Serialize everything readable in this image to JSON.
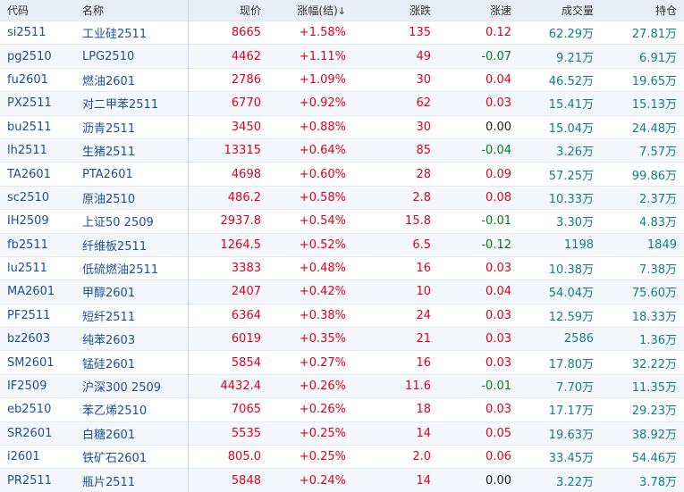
{
  "headers": {
    "code": "代码",
    "name": "名称",
    "price": "现价",
    "change_pct": "涨幅(结)",
    "sort_arrow": "↓",
    "change": "涨跌",
    "speed": "涨速",
    "volume": "成交量",
    "open_interest": "持仓"
  },
  "colors": {
    "up": "#e0001b",
    "down": "#00801a",
    "flat": "#222222",
    "code": "#1a4fa0",
    "volume": "#107c8c",
    "header_bg": "#e8eef7"
  },
  "rows": [
    {
      "code": "si2511",
      "name": "工业硅2511",
      "price": "8665",
      "change_pct": "+1.58%",
      "change": "135",
      "speed": "0.12",
      "speed_dir": "up",
      "volume": "62.29万",
      "oi": "27.81万"
    },
    {
      "code": "pg2510",
      "name": "LPG2510",
      "price": "4462",
      "change_pct": "+1.11%",
      "change": "49",
      "speed": "-0.07",
      "speed_dir": "down",
      "volume": "9.21万",
      "oi": "6.91万"
    },
    {
      "code": "fu2601",
      "name": "燃油2601",
      "price": "2786",
      "change_pct": "+1.09%",
      "change": "30",
      "speed": "0.04",
      "speed_dir": "up",
      "volume": "46.52万",
      "oi": "19.65万"
    },
    {
      "code": "PX2511",
      "name": "对二甲苯2511",
      "price": "6770",
      "change_pct": "+0.92%",
      "change": "62",
      "speed": "0.03",
      "speed_dir": "up",
      "volume": "15.41万",
      "oi": "15.13万"
    },
    {
      "code": "bu2511",
      "name": "沥青2511",
      "price": "3450",
      "change_pct": "+0.88%",
      "change": "30",
      "speed": "0.00",
      "speed_dir": "flat",
      "volume": "15.04万",
      "oi": "24.48万"
    },
    {
      "code": "lh2511",
      "name": "生猪2511",
      "price": "13315",
      "change_pct": "+0.64%",
      "change": "85",
      "speed": "-0.04",
      "speed_dir": "down",
      "volume": "3.26万",
      "oi": "7.57万"
    },
    {
      "code": "TA2601",
      "name": "PTA2601",
      "price": "4698",
      "change_pct": "+0.60%",
      "change": "28",
      "speed": "0.09",
      "speed_dir": "up",
      "volume": "57.25万",
      "oi": "99.86万"
    },
    {
      "code": "sc2510",
      "name": "原油2510",
      "price": "486.2",
      "change_pct": "+0.58%",
      "change": "2.8",
      "speed": "0.08",
      "speed_dir": "up",
      "volume": "10.33万",
      "oi": "2.37万"
    },
    {
      "code": "IH2509",
      "name": "上证50 2509",
      "price": "2937.8",
      "change_pct": "+0.54%",
      "change": "15.8",
      "speed": "-0.01",
      "speed_dir": "down",
      "volume": "3.30万",
      "oi": "4.83万"
    },
    {
      "code": "fb2511",
      "name": "纤维板2511",
      "price": "1264.5",
      "change_pct": "+0.52%",
      "change": "6.5",
      "speed": "-0.12",
      "speed_dir": "down",
      "volume": "1198",
      "oi": "1849"
    },
    {
      "code": "lu2511",
      "name": "低硫燃油2511",
      "price": "3383",
      "change_pct": "+0.48%",
      "change": "16",
      "speed": "0.03",
      "speed_dir": "up",
      "volume": "10.38万",
      "oi": "7.38万"
    },
    {
      "code": "MA2601",
      "name": "甲醇2601",
      "price": "2407",
      "change_pct": "+0.42%",
      "change": "10",
      "speed": "0.04",
      "speed_dir": "up",
      "volume": "54.04万",
      "oi": "75.60万"
    },
    {
      "code": "PF2511",
      "name": "短纤2511",
      "price": "6364",
      "change_pct": "+0.38%",
      "change": "24",
      "speed": "0.03",
      "speed_dir": "up",
      "volume": "12.59万",
      "oi": "18.33万"
    },
    {
      "code": "bz2603",
      "name": "纯苯2603",
      "price": "6019",
      "change_pct": "+0.35%",
      "change": "21",
      "speed": "0.03",
      "speed_dir": "up",
      "volume": "2586",
      "oi": "1.36万"
    },
    {
      "code": "SM2601",
      "name": "锰硅2601",
      "price": "5854",
      "change_pct": "+0.27%",
      "change": "16",
      "speed": "0.03",
      "speed_dir": "up",
      "volume": "17.80万",
      "oi": "32.22万"
    },
    {
      "code": "IF2509",
      "name": "沪深300 2509",
      "price": "4432.4",
      "change_pct": "+0.26%",
      "change": "11.6",
      "speed": "-0.01",
      "speed_dir": "down",
      "volume": "7.70万",
      "oi": "11.35万"
    },
    {
      "code": "eb2510",
      "name": "苯乙烯2510",
      "price": "7065",
      "change_pct": "+0.26%",
      "change": "18",
      "speed": "0.03",
      "speed_dir": "up",
      "volume": "17.17万",
      "oi": "29.23万"
    },
    {
      "code": "SR2601",
      "name": "白糖2601",
      "price": "5535",
      "change_pct": "+0.25%",
      "change": "14",
      "speed": "0.05",
      "speed_dir": "up",
      "volume": "19.63万",
      "oi": "38.92万"
    },
    {
      "code": "i2601",
      "name": "铁矿石2601",
      "price": "805.0",
      "change_pct": "+0.25%",
      "change": "2.0",
      "speed": "0.06",
      "speed_dir": "up",
      "volume": "33.45万",
      "oi": "54.46万"
    },
    {
      "code": "PR2511",
      "name": "瓶片2511",
      "price": "5848",
      "change_pct": "+0.24%",
      "change": "14",
      "speed": "0.00",
      "speed_dir": "flat",
      "volume": "3.22万",
      "oi": "3.78万"
    }
  ]
}
